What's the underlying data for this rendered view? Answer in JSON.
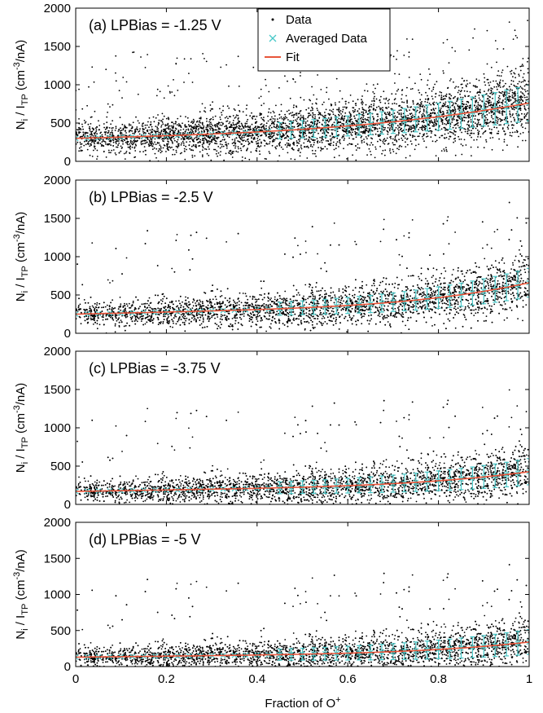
{
  "chart_data": [
    {
      "type": "scatter",
      "panel_label": "(a) LPBias = -1.25 V",
      "ylabel_main": "N",
      "ylabel_sub1": "i",
      "ylabel_mid": " / I",
      "ylabel_sub2": "TP",
      "ylabel_units": " (cm",
      "ylabel_sup": "-3",
      "ylabel_end": "/nA)",
      "xlim": [
        0,
        1
      ],
      "ylim": [
        0,
        2000
      ],
      "yticks": [
        "0",
        "500",
        "1000",
        "1500",
        "2000"
      ],
      "fit": {
        "a": 300,
        "b": 1.0,
        "c": 300,
        "n": 3.0
      },
      "spread": 150,
      "outlier_fraction": 0.08,
      "legend": true,
      "series": [
        {
          "name": "Data",
          "marker": "dot",
          "color": "#000000"
        },
        {
          "name": "Averaged Data",
          "marker": "x",
          "color": "#48c8c8"
        },
        {
          "name": "Fit",
          "marker": "line",
          "color": "#e8553a"
        }
      ]
    },
    {
      "type": "scatter",
      "panel_label": "(b) LPBias = -2.5 V",
      "ylabel_main": "N",
      "ylabel_sub1": "i",
      "ylabel_mid": " / I",
      "ylabel_sub2": "TP",
      "ylabel_units": " (cm",
      "ylabel_sup": "-3",
      "ylabel_end": "/nA)",
      "xlim": [
        0,
        1
      ],
      "ylim": [
        0,
        2000
      ],
      "yticks": [
        "0",
        "500",
        "1000",
        "1500",
        "2000"
      ],
      "fit": {
        "a": 250,
        "b": 0.55,
        "c": 500,
        "n": 4.2
      },
      "spread": 120,
      "outlier_fraction": 0.06,
      "legend": false
    },
    {
      "type": "scatter",
      "panel_label": "(c) LPBias = -3.75 V",
      "ylabel_main": "N",
      "ylabel_sub1": "i",
      "ylabel_mid": " / I",
      "ylabel_sub2": "TP",
      "ylabel_units": " (cm",
      "ylabel_sup": "-3",
      "ylabel_end": "/nA)",
      "xlim": [
        0,
        1
      ],
      "ylim": [
        0,
        2000
      ],
      "yticks": [
        "0",
        "500",
        "1000",
        "1500",
        "2000"
      ],
      "fit": {
        "a": 170,
        "b": 0.3,
        "c": 550,
        "n": 4.2
      },
      "spread": 110,
      "outlier_fraction": 0.06,
      "legend": false
    },
    {
      "type": "scatter",
      "panel_label": "(d) LPBias = -5 V",
      "ylabel_main": "N",
      "ylabel_sub1": "i",
      "ylabel_mid": " / I",
      "ylabel_sub2": "TP",
      "ylabel_units": " (cm",
      "ylabel_sup": "-3",
      "ylabel_end": "/nA)",
      "xlim": [
        0,
        1
      ],
      "ylim": [
        0,
        2000
      ],
      "yticks": [
        "0",
        "500",
        "1000",
        "1500",
        "2000"
      ],
      "fit": {
        "a": 130,
        "b": 0.2,
        "c": 700,
        "n": 4.5
      },
      "spread": 110,
      "outlier_fraction": 0.06,
      "legend": false
    }
  ],
  "xticks": [
    "0",
    "0.2",
    "0.4",
    "0.6",
    "0.8",
    "1"
  ],
  "xlabel_main": "Fraction of O",
  "xlabel_sup": "+",
  "colors": {
    "data": "#000000",
    "averaged": "#48c8c8",
    "fit": "#e8553a"
  }
}
